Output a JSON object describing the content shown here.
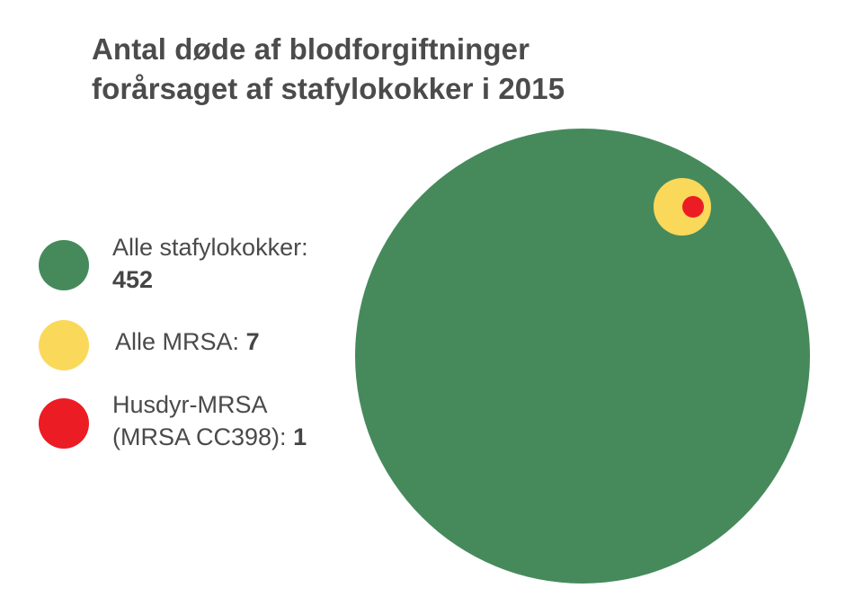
{
  "title": {
    "line1": "Antal døde af blodforgiftninger",
    "line2": "forårsaget af stafylokokker i 2015"
  },
  "legend": {
    "items": [
      {
        "label": "Alle stafylokokker:",
        "value": "452",
        "color": "#468a5c"
      },
      {
        "label": "Alle MRSA:",
        "value": "7",
        "color": "#fad85a"
      },
      {
        "label_line1": "Husdyr-MRSA",
        "label_line2": "(MRSA CC398):",
        "value": "1",
        "color": "#ec1c24"
      }
    ]
  },
  "colors": {
    "green": "#468a5c",
    "yellow": "#fad85a",
    "red": "#ec1c24",
    "text": "#4a4a4a",
    "background": "#ffffff"
  },
  "chart_data": {
    "type": "proportional-area-circles",
    "title": "Antal døde af blodforgiftninger forårsaget af stafylokokker i 2015",
    "categories": [
      "Alle stafylokokker",
      "Alle MRSA",
      "Husdyr-MRSA (MRSA CC398)"
    ],
    "values": [
      452,
      7,
      1
    ],
    "series": [
      {
        "name": "Alle stafylokokker",
        "value": 452,
        "color": "#468a5c",
        "cx": 648,
        "cy": 396,
        "r": 253
      },
      {
        "name": "Alle MRSA",
        "value": 7,
        "color": "#fad85a",
        "cx": 759,
        "cy": 230,
        "r": 32
      },
      {
        "name": "Husdyr-MRSA (MRSA CC398)",
        "value": 1,
        "color": "#ec1c24",
        "cx": 771,
        "cy": 230,
        "r": 12
      }
    ],
    "xlabel": "",
    "ylabel": "",
    "legend_position": "left",
    "grid": false
  }
}
